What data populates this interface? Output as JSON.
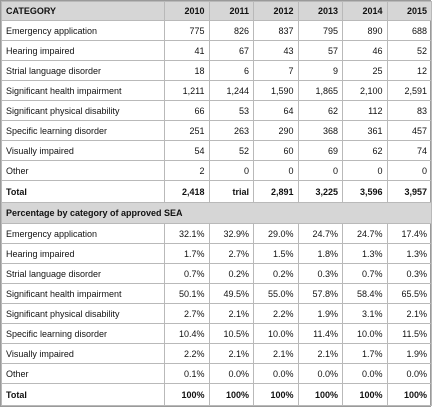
{
  "header": {
    "category_label": "CATEGORY",
    "years": [
      "2010",
      "2011",
      "2012",
      "2013",
      "2014",
      "2015"
    ]
  },
  "counts": {
    "rows": [
      {
        "label": "Emergency application",
        "values": [
          "775",
          "826",
          "837",
          "795",
          "890",
          "688"
        ]
      },
      {
        "label": "Hearing impaired",
        "values": [
          "41",
          "67",
          "43",
          "57",
          "46",
          "52"
        ]
      },
      {
        "label": "Strial language disorder",
        "values": [
          "18",
          "6",
          "7",
          "9",
          "25",
          "12"
        ]
      },
      {
        "label": "Significant health impairment",
        "values": [
          "1,211",
          "1,244",
          "1,590",
          "1,865",
          "2,100",
          "2,591"
        ]
      },
      {
        "label": "Significant physical disability",
        "values": [
          "66",
          "53",
          "64",
          "62",
          "112",
          "83"
        ]
      },
      {
        "label": "Specific learning disorder",
        "values": [
          "251",
          "263",
          "290",
          "368",
          "361",
          "457"
        ]
      },
      {
        "label": "Visually impaired",
        "values": [
          "54",
          "52",
          "60",
          "69",
          "62",
          "74"
        ]
      },
      {
        "label": "Other",
        "values": [
          "2",
          "0",
          "0",
          "0",
          "0",
          "0"
        ]
      }
    ],
    "total": {
      "label": "Total",
      "values": [
        "2,418",
        "trial",
        "2,891",
        "3,225",
        "3,596",
        "3,957"
      ]
    }
  },
  "percentages": {
    "section_title": "Percentage by category of approved SEA",
    "rows": [
      {
        "label": "Emergency application",
        "values": [
          "32.1%",
          "32.9%",
          "29.0%",
          "24.7%",
          "24.7%",
          "17.4%"
        ]
      },
      {
        "label": "Hearing impaired",
        "values": [
          "1.7%",
          "2.7%",
          "1.5%",
          "1.8%",
          "1.3%",
          "1.3%"
        ]
      },
      {
        "label": "Strial language disorder",
        "values": [
          "0.7%",
          "0.2%",
          "0.2%",
          "0.3%",
          "0.7%",
          "0.3%"
        ]
      },
      {
        "label": "Significant health impairment",
        "values": [
          "50.1%",
          "49.5%",
          "55.0%",
          "57.8%",
          "58.4%",
          "65.5%"
        ]
      },
      {
        "label": "Significant physical disability",
        "values": [
          "2.7%",
          "2.1%",
          "2.2%",
          "1.9%",
          "3.1%",
          "2.1%"
        ]
      },
      {
        "label": "Specific learning disorder",
        "values": [
          "10.4%",
          "10.5%",
          "10.0%",
          "11.4%",
          "10.0%",
          "11.5%"
        ]
      },
      {
        "label": "Visually impaired",
        "values": [
          "2.2%",
          "2.1%",
          "2.1%",
          "2.1%",
          "1.7%",
          "1.9%"
        ]
      },
      {
        "label": "Other",
        "values": [
          "0.1%",
          "0.0%",
          "0.0%",
          "0.0%",
          "0.0%",
          "0.0%"
        ]
      }
    ],
    "total": {
      "label": "Total",
      "values": [
        "100%",
        "100%",
        "100%",
        "100%",
        "100%",
        "100%"
      ]
    }
  },
  "colors": {
    "header_bg": "#d6d6d6",
    "grid_line": "#b9b9b9"
  }
}
